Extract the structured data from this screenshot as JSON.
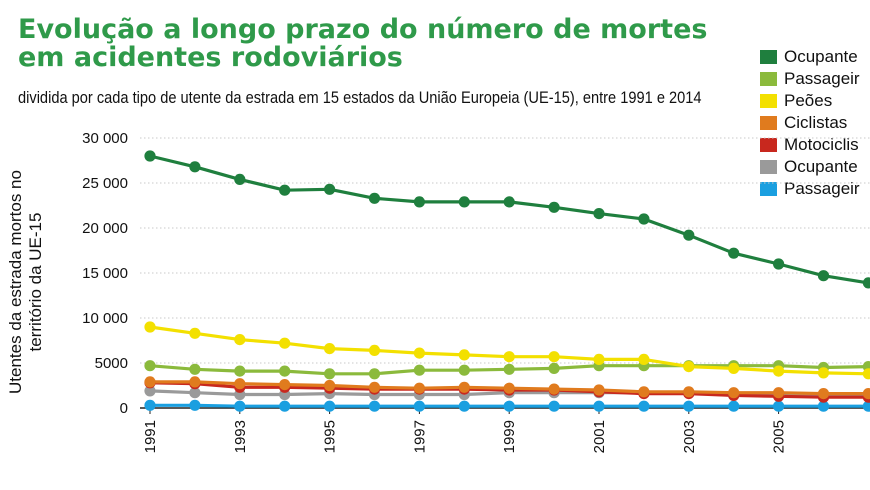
{
  "title": "Evolução a longo prazo do número de mortes em acidentes rodoviários",
  "subtitle": "dividida por cada tipo de utente da estrada em 15 estados da União Europeia (UE-15), entre 1991 e 2014",
  "chart_data": {
    "type": "line",
    "title": "Evolução a longo prazo do número de mortes em acidentes rodoviários",
    "subtitle": "dividida por cada tipo de utente da estrada em 15 estados da União Europeia (UE-15), entre 1991 e 2014",
    "ylabel": "Utentes da estrada mortos no território da UE-15",
    "xlabel": "",
    "ylim": [
      0,
      30000
    ],
    "yticks": [
      0,
      5000,
      10000,
      15000,
      20000,
      25000,
      30000
    ],
    "ytick_labels": [
      "0",
      "5000",
      "10 000",
      "15 000",
      "20 000",
      "25 000",
      "30 000"
    ],
    "xticks": [
      1991,
      1993,
      1995,
      1997,
      1999,
      2001,
      2003,
      2005
    ],
    "grid": true,
    "legend_position": "top-right",
    "x": [
      1991,
      1992,
      1993,
      1994,
      1995,
      1996,
      1997,
      1998,
      1999,
      2000,
      2001,
      2002,
      2003,
      2004,
      2005,
      2006,
      2007
    ],
    "series": [
      {
        "name": "Ocupante",
        "color": "#1f7f3e",
        "values": [
          28000,
          26800,
          25400,
          24200,
          24300,
          23300,
          22900,
          22900,
          22900,
          22300,
          21600,
          21000,
          19200,
          17200,
          16000,
          14700,
          13900
        ]
      },
      {
        "name": "Passageir",
        "color": "#8bba3c",
        "values": [
          4700,
          4300,
          4100,
          4100,
          3800,
          3800,
          4200,
          4200,
          4300,
          4400,
          4700,
          4700,
          4700,
          4700,
          4700,
          4500,
          4600
        ]
      },
      {
        "name": "Peões",
        "color": "#f3e000",
        "values": [
          9000,
          8300,
          7600,
          7200,
          6600,
          6400,
          6100,
          5900,
          5700,
          5700,
          5400,
          5400,
          4600,
          4400,
          4100,
          3900,
          3800
        ]
      },
      {
        "name": "Ciclistas",
        "color": "#e07b1e",
        "values": [
          2900,
          2900,
          2700,
          2600,
          2500,
          2300,
          2200,
          2300,
          2200,
          2100,
          2000,
          1800,
          1800,
          1700,
          1700,
          1600,
          1600
        ]
      },
      {
        "name": "Motociclis",
        "color": "#c8281e",
        "values": [
          2800,
          2700,
          2300,
          2300,
          2200,
          2100,
          2100,
          2100,
          2000,
          2000,
          1800,
          1600,
          1600,
          1400,
          1300,
          1200,
          1200
        ]
      },
      {
        "name": "Ocupante",
        "color": "#9a9a9a",
        "values": [
          1900,
          1700,
          1500,
          1500,
          1600,
          1500,
          1500,
          1500,
          1700,
          1700,
          1700,
          1700,
          1700,
          1400,
          1400,
          1500,
          1500
        ]
      },
      {
        "name": "Passageir",
        "color": "#1a9fe0",
        "values": [
          300,
          300,
          200,
          200,
          200,
          200,
          200,
          200,
          200,
          200,
          200,
          200,
          200,
          200,
          200,
          200,
          200
        ]
      }
    ]
  }
}
